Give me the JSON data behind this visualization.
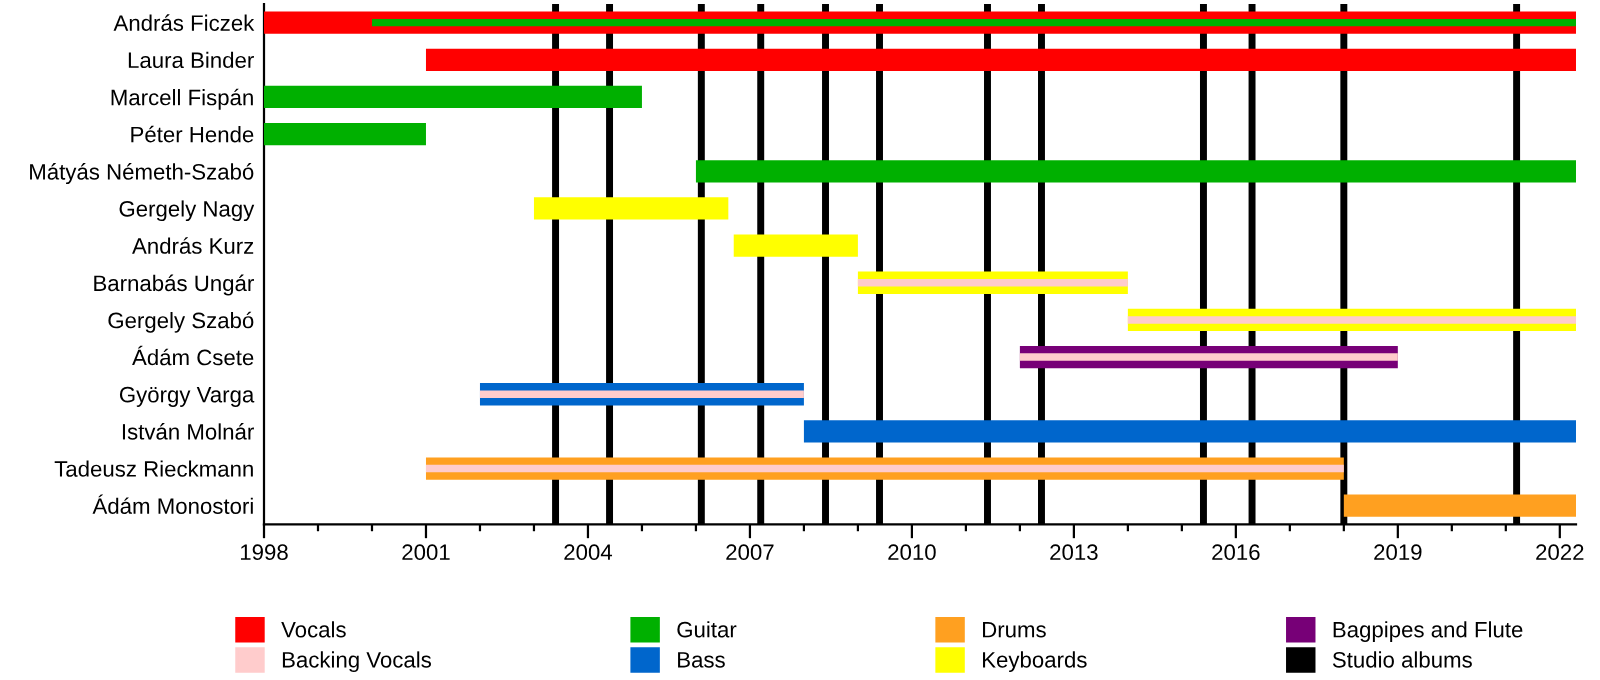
{
  "chart_data": {
    "type": "bar",
    "orientation": "horizontal",
    "categories": [
      "András Ficzek",
      "Laura Binder",
      "Marcell Fispán",
      "Péter Hende",
      "Mátyás Németh-Szabó",
      "Gergely Nagy",
      "András Kurz",
      "Barnabás Ungár",
      "Gergely Szabó",
      "Ádám Csete",
      "György Varga",
      "István Molnár",
      "Tadeusz Rieckmann",
      "Ádám Monostori"
    ],
    "series": [
      {
        "name": "Vocals",
        "color": "#ff0000",
        "base": [
          1998,
          2001,
          null,
          null,
          null,
          null,
          null,
          null,
          null,
          null,
          null,
          null,
          null,
          null
        ],
        "values": [
          24.3,
          21.3,
          null,
          null,
          null,
          null,
          null,
          null,
          null,
          null,
          null,
          null,
          null,
          null
        ]
      },
      {
        "name": "Backing Vocals",
        "color": "#ffcccc",
        "base": [
          null,
          null,
          null,
          null,
          null,
          null,
          null,
          2009,
          2014,
          2012,
          2002,
          null,
          2001,
          null
        ],
        "values": [
          null,
          null,
          null,
          null,
          null,
          null,
          null,
          5,
          8.3,
          7,
          6,
          null,
          17,
          null
        ]
      },
      {
        "name": "Guitar",
        "color": "#00b000",
        "base": [
          null,
          null,
          1998,
          1998,
          2006,
          null,
          null,
          null,
          null,
          null,
          null,
          null,
          null,
          null
        ],
        "values": [
          null,
          null,
          7,
          3,
          16.3,
          null,
          null,
          null,
          null,
          null,
          null,
          null,
          null,
          null
        ]
      },
      {
        "name": "Bass",
        "color": "#0066cc",
        "base": [
          null,
          null,
          null,
          null,
          null,
          null,
          null,
          null,
          null,
          null,
          2002,
          2008,
          null,
          null
        ],
        "values": [
          null,
          null,
          null,
          null,
          null,
          null,
          null,
          null,
          null,
          null,
          6,
          14.3,
          null,
          null
        ]
      },
      {
        "name": "Drums",
        "color": "#ffa020",
        "base": [
          null,
          null,
          null,
          null,
          null,
          null,
          null,
          null,
          null,
          null,
          null,
          null,
          2001,
          2018
        ],
        "values": [
          null,
          null,
          null,
          null,
          null,
          null,
          null,
          null,
          null,
          null,
          null,
          null,
          17,
          4.3
        ]
      },
      {
        "name": "Keyboards",
        "color": "#ffff00",
        "base": [
          null,
          null,
          null,
          null,
          null,
          2003,
          2006.7,
          2009,
          2014,
          null,
          null,
          null,
          null,
          null
        ],
        "values": [
          null,
          null,
          null,
          null,
          null,
          3.6,
          2.3,
          5,
          8.3,
          null,
          null,
          null,
          null,
          null
        ]
      },
      {
        "name": "Bagpipes and Flute",
        "color": "#770077",
        "base": [
          null,
          null,
          null,
          null,
          null,
          null,
          null,
          null,
          null,
          2012,
          null,
          null,
          null,
          null
        ],
        "values": [
          null,
          null,
          null,
          null,
          null,
          null,
          null,
          null,
          null,
          7,
          null,
          null,
          null,
          null
        ]
      },
      {
        "color": "#00b000",
        "base": [
          2000,
          null,
          null,
          null,
          null,
          null,
          null,
          null,
          null,
          null,
          null,
          null,
          null,
          null
        ],
        "values": [
          22.3,
          null,
          null,
          null,
          null,
          null,
          null,
          null,
          null,
          null,
          null,
          null,
          null,
          null
        ]
      }
    ],
    "ref_lines": [
      {
        "axis": "x",
        "value": 2003.4,
        "label": "Studio albums",
        "color": "#000000"
      },
      {
        "axis": "x",
        "value": 2004.4,
        "color": "#000000"
      },
      {
        "axis": "x",
        "value": 2006.1,
        "color": "#000000"
      },
      {
        "axis": "x",
        "value": 2007.2,
        "color": "#000000"
      },
      {
        "axis": "x",
        "value": 2008.4,
        "color": "#000000"
      },
      {
        "axis": "x",
        "value": 2009.4,
        "color": "#000000"
      },
      {
        "axis": "x",
        "value": 2011.4,
        "color": "#000000"
      },
      {
        "axis": "x",
        "value": 2012.4,
        "color": "#000000"
      },
      {
        "axis": "x",
        "value": 2015.4,
        "color": "#000000"
      },
      {
        "axis": "x",
        "value": 2016.3,
        "color": "#000000"
      },
      {
        "axis": "x",
        "value": 2018.0,
        "color": "#000000"
      },
      {
        "axis": "x",
        "value": 2021.2,
        "color": "#000000"
      }
    ],
    "xlim": [
      1998,
      2022.3
    ],
    "xticks": [
      1998,
      {
        "value": 1999,
        "label": null
      },
      {
        "value": 2000,
        "label": null
      },
      2001,
      {
        "value": 2002,
        "label": null
      },
      {
        "value": 2003,
        "label": null
      },
      2004,
      {
        "value": 2005,
        "label": null
      },
      {
        "value": 2006,
        "label": null
      },
      2007,
      {
        "value": 2008,
        "label": null
      },
      {
        "value": 2009,
        "label": null
      },
      2010,
      {
        "value": 2011,
        "label": null
      },
      {
        "value": 2012,
        "label": null
      },
      2013,
      {
        "value": 2014,
        "label": null
      },
      {
        "value": 2015,
        "label": null
      },
      2016,
      {
        "value": 2017,
        "label": null
      },
      {
        "value": 2018,
        "label": null
      },
      2019,
      {
        "value": 2020,
        "label": null
      },
      {
        "value": 2021,
        "label": null
      },
      2022
    ],
    "grid": false,
    "legend": "bottom"
  }
}
